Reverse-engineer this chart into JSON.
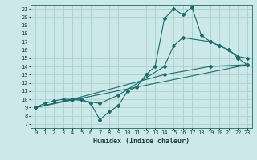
{
  "xlabel": "Humidex (Indice chaleur)",
  "bg_color": "#cce8e8",
  "grid_color": "#a8d0d0",
  "line_color": "#1a6b6b",
  "xlim": [
    -0.5,
    23.5
  ],
  "ylim": [
    6.5,
    21.5
  ],
  "xticks": [
    0,
    1,
    2,
    3,
    4,
    5,
    6,
    7,
    8,
    9,
    10,
    11,
    12,
    13,
    14,
    15,
    16,
    17,
    18,
    19,
    20,
    21,
    22,
    23
  ],
  "yticks": [
    7,
    8,
    9,
    10,
    11,
    12,
    13,
    14,
    15,
    16,
    17,
    18,
    19,
    20,
    21
  ],
  "line1_x": [
    0,
    1,
    2,
    3,
    4,
    5,
    6,
    7,
    8,
    9,
    10,
    11,
    12,
    13,
    14,
    15,
    16,
    17,
    18,
    19,
    20,
    21,
    22,
    23
  ],
  "line1_y": [
    9,
    9.5,
    9.8,
    10,
    10,
    10,
    9.5,
    7.5,
    8.5,
    9.2,
    11,
    11.5,
    13,
    14,
    19.8,
    21,
    20.3,
    21.2,
    17.8,
    17,
    16.5,
    16,
    15,
    14.2
  ],
  "line2_x": [
    0,
    4,
    7,
    9,
    14,
    15,
    16,
    19,
    20,
    21,
    22,
    23
  ],
  "line2_y": [
    9,
    10,
    9.5,
    10.5,
    14,
    16.5,
    17.5,
    17,
    16.5,
    16,
    15.2,
    15
  ],
  "line3_x": [
    0,
    4,
    14,
    19,
    23
  ],
  "line3_y": [
    9,
    10,
    13,
    14,
    14.2
  ],
  "line4_x": [
    0,
    23
  ],
  "line4_y": [
    9,
    14.2
  ]
}
